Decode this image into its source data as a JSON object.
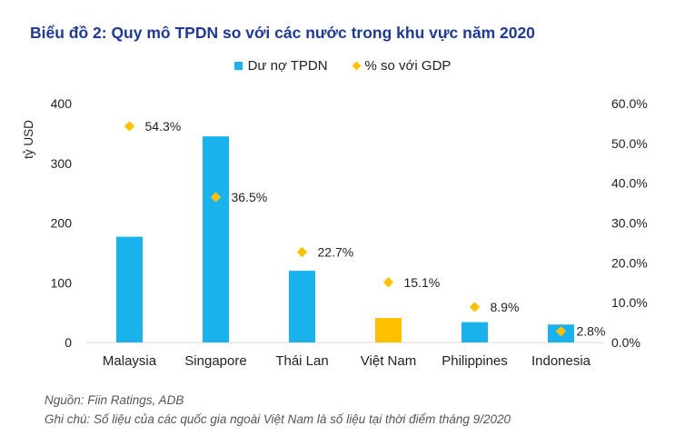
{
  "title": "Biểu đồ 2: Quy mô TPDN so với các nước trong khu vực năm 2020",
  "legend": {
    "bar_label": "Dư nợ TPDN",
    "point_label": "% so với GDP"
  },
  "colors": {
    "bar": "#1ab2ec",
    "highlight_bar": "#ffc000",
    "point": "#ffc000",
    "title": "#1f3a93"
  },
  "chart_data": {
    "type": "bar",
    "categories": [
      "Malaysia",
      "Singapore",
      "Thái Lan",
      "Việt Nam",
      "Philippines",
      "Indonesia"
    ],
    "series": [
      {
        "name": "Dư nợ TPDN",
        "axis": "left",
        "values": [
          177,
          345,
          120,
          41,
          34,
          30
        ],
        "highlight_index": 3
      },
      {
        "name": "% so với GDP",
        "axis": "right",
        "type": "scatter",
        "values": [
          54.3,
          36.5,
          22.7,
          15.1,
          8.9,
          2.8
        ],
        "labels": [
          "54.3%",
          "36.5%",
          "22.7%",
          "15.1%",
          "8.9%",
          "2.8%"
        ]
      }
    ],
    "ylabel": "tỷ USD",
    "ylim": [
      0,
      400
    ],
    "yticks": [
      "0",
      "100",
      "200",
      "300",
      "400"
    ],
    "y2lim": [
      0,
      60
    ],
    "y2ticks": [
      "0.0%",
      "10.0%",
      "20.0%",
      "30.0%",
      "40.0%",
      "50.0%",
      "60.0%"
    ],
    "grid": false,
    "legend_position": "top-center"
  },
  "notes": {
    "source": "Nguồn: Fiin Ratings, ADB",
    "note": "Ghi chú: Số liệu của các quốc gia ngoài Việt Nam là số liệu tại thời điểm tháng 9/2020"
  }
}
